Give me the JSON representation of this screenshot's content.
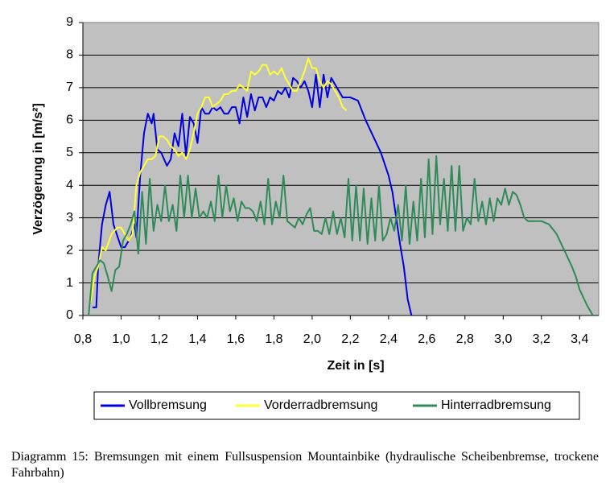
{
  "chart_data": {
    "type": "line",
    "y_label": "Verzögerung in [m/s²]",
    "x_label": "Zeit in [s]",
    "caption": "Diagramm 15: Bremsungen mit einem Fullsuspension Mountainbike (hydraulische Scheibenbremse, trockene Fahrbahn)",
    "xlim": [
      0.8,
      3.5
    ],
    "ylim": [
      0,
      9
    ],
    "xticks": [
      {
        "value": 0.8,
        "label": "0,8"
      },
      {
        "value": 1.0,
        "label": "1,0"
      },
      {
        "value": 1.2,
        "label": "1,2"
      },
      {
        "value": 1.4,
        "label": "1,4"
      },
      {
        "value": 1.6,
        "label": "1,6"
      },
      {
        "value": 1.8,
        "label": "1,8"
      },
      {
        "value": 2.0,
        "label": "2,0"
      },
      {
        "value": 2.2,
        "label": "2,2"
      },
      {
        "value": 2.4,
        "label": "2,4"
      },
      {
        "value": 2.6,
        "label": "2,6"
      },
      {
        "value": 2.8,
        "label": "2,8"
      },
      {
        "value": 3.0,
        "label": "3,0"
      },
      {
        "value": 3.2,
        "label": "3,2"
      },
      {
        "value": 3.4,
        "label": "3,4"
      }
    ],
    "yticks": [
      0,
      1,
      2,
      3,
      4,
      5,
      6,
      7,
      8,
      9
    ],
    "grid": true,
    "plot_background": "#c0c0c0",
    "series": [
      {
        "name": "Vollbremsung",
        "color": "#0000dd",
        "x": [
          0.85,
          0.87,
          0.88,
          0.9,
          0.92,
          0.94,
          0.96,
          1.0,
          1.02,
          1.05,
          1.07,
          1.08,
          1.1,
          1.12,
          1.14,
          1.16,
          1.17,
          1.19,
          1.21,
          1.24,
          1.26,
          1.28,
          1.3,
          1.32,
          1.34,
          1.36,
          1.38,
          1.4,
          1.42,
          1.44,
          1.46,
          1.48,
          1.5,
          1.52,
          1.54,
          1.56,
          1.58,
          1.6,
          1.62,
          1.64,
          1.66,
          1.68,
          1.7,
          1.72,
          1.74,
          1.76,
          1.78,
          1.8,
          1.82,
          1.84,
          1.86,
          1.88,
          1.9,
          1.92,
          1.94,
          1.96,
          1.98,
          2.0,
          2.02,
          2.04,
          2.06,
          2.08,
          2.1,
          2.12,
          2.16,
          2.2,
          2.24,
          2.28,
          2.32,
          2.36,
          2.4,
          2.42,
          2.44,
          2.46,
          2.48,
          2.5,
          2.52
        ],
        "values": [
          0.25,
          0.25,
          1.5,
          2.8,
          3.4,
          3.8,
          2.8,
          2.1,
          2.1,
          2.4,
          2.8,
          2.4,
          4.3,
          5.6,
          6.2,
          5.9,
          6.2,
          5.1,
          5.0,
          4.6,
          4.8,
          5.6,
          5.2,
          6.2,
          4.9,
          6.1,
          5.9,
          5.3,
          6.4,
          6.2,
          6.2,
          6.4,
          6.3,
          6.4,
          6.2,
          6.2,
          6.4,
          6.4,
          5.9,
          6.7,
          6.1,
          6.8,
          6.3,
          6.7,
          6.7,
          6.4,
          6.7,
          6.6,
          6.9,
          6.8,
          7.0,
          6.7,
          7.3,
          7.2,
          7.0,
          7.2,
          6.9,
          6.4,
          7.4,
          6.4,
          7.4,
          6.7,
          7.3,
          7.1,
          6.7,
          6.7,
          6.6,
          6.0,
          5.5,
          5.0,
          4.3,
          3.8,
          3.0,
          2.2,
          1.5,
          0.5,
          0
        ]
      },
      {
        "name": "Vorderradbremsung",
        "color": "#ffff33",
        "x": [
          0.84,
          0.86,
          0.88,
          0.9,
          0.92,
          0.95,
          0.98,
          1.0,
          1.02,
          1.04,
          1.06,
          1.08,
          1.1,
          1.12,
          1.14,
          1.16,
          1.18,
          1.2,
          1.22,
          1.24,
          1.26,
          1.28,
          1.3,
          1.32,
          1.34,
          1.36,
          1.38,
          1.4,
          1.42,
          1.44,
          1.46,
          1.48,
          1.5,
          1.52,
          1.54,
          1.56,
          1.58,
          1.6,
          1.62,
          1.64,
          1.66,
          1.68,
          1.7,
          1.72,
          1.74,
          1.76,
          1.78,
          1.8,
          1.82,
          1.84,
          1.86,
          1.88,
          1.9,
          1.92,
          1.94,
          1.96,
          1.98,
          2.0,
          2.02,
          2.04,
          2.06,
          2.08,
          2.1,
          2.12,
          2.14,
          2.16,
          2.18
        ],
        "values": [
          0.4,
          1.2,
          1.5,
          2.1,
          2.0,
          2.5,
          2.7,
          2.7,
          2.5,
          2.3,
          2.5,
          4.0,
          4.4,
          4.6,
          4.8,
          4.8,
          4.9,
          5.5,
          5.5,
          5.4,
          5.2,
          5.1,
          4.9,
          5.0,
          4.8,
          5.1,
          5.6,
          6.2,
          6.4,
          6.7,
          6.7,
          6.4,
          6.5,
          6.6,
          6.8,
          6.8,
          6.9,
          6.9,
          7.1,
          7.0,
          6.9,
          7.5,
          7.4,
          7.5,
          7.7,
          7.7,
          7.4,
          7.5,
          7.4,
          7.6,
          7.3,
          7.1,
          6.9,
          6.9,
          7.2,
          7.5,
          7.9,
          7.6,
          7.6,
          7.2,
          7.0,
          7.2,
          7.1,
          6.9,
          6.7,
          6.4,
          6.3
        ]
      },
      {
        "name": "Hinterradbremsung",
        "color": "#2e8b57",
        "x": [
          0.83,
          0.85,
          0.87,
          0.89,
          0.91,
          0.93,
          0.95,
          0.97,
          0.99,
          1.01,
          1.03,
          1.05,
          1.07,
          1.09,
          1.11,
          1.13,
          1.15,
          1.17,
          1.19,
          1.21,
          1.23,
          1.25,
          1.27,
          1.29,
          1.31,
          1.33,
          1.35,
          1.37,
          1.39,
          1.41,
          1.43,
          1.45,
          1.47,
          1.49,
          1.51,
          1.53,
          1.55,
          1.57,
          1.59,
          1.61,
          1.63,
          1.65,
          1.67,
          1.69,
          1.71,
          1.73,
          1.75,
          1.77,
          1.79,
          1.81,
          1.83,
          1.85,
          1.87,
          1.89,
          1.91,
          1.93,
          1.95,
          1.97,
          1.99,
          2.01,
          2.03,
          2.05,
          2.07,
          2.09,
          2.11,
          2.13,
          2.15,
          2.17,
          2.19,
          2.21,
          2.23,
          2.25,
          2.27,
          2.29,
          2.31,
          2.33,
          2.35,
          2.37,
          2.39,
          2.41,
          2.43,
          2.45,
          2.47,
          2.49,
          2.51,
          2.53,
          2.55,
          2.57,
          2.59,
          2.61,
          2.63,
          2.65,
          2.67,
          2.69,
          2.71,
          2.73,
          2.75,
          2.77,
          2.79,
          2.81,
          2.83,
          2.85,
          2.87,
          2.89,
          2.91,
          2.93,
          2.95,
          2.97,
          2.99,
          3.01,
          3.03,
          3.05,
          3.07,
          3.09,
          3.11,
          3.13,
          3.2,
          3.24,
          3.28,
          3.32,
          3.36,
          3.38,
          3.4,
          3.44,
          3.47
        ],
        "values": [
          0,
          1.3,
          1.5,
          1.7,
          1.6,
          1.2,
          0.75,
          1.4,
          1.5,
          2.3,
          2.5,
          2.8,
          3.2,
          1.9,
          3.8,
          2.2,
          4.2,
          2.6,
          3.4,
          2.9,
          4.0,
          2.9,
          3.4,
          2.6,
          4.3,
          3.0,
          4.3,
          3.0,
          3.9,
          3.0,
          3.2,
          3.0,
          3.5,
          2.9,
          4.3,
          3.0,
          4.0,
          3.2,
          3.6,
          2.9,
          3.5,
          3.3,
          3.3,
          3.2,
          2.9,
          3.5,
          2.8,
          4.2,
          2.8,
          3.5,
          3.0,
          4.3,
          2.9,
          2.8,
          2.7,
          3.0,
          2.8,
          3.1,
          3.3,
          2.6,
          2.6,
          2.5,
          3.0,
          2.5,
          3.2,
          2.5,
          3.0,
          2.4,
          4.2,
          2.3,
          4.0,
          2.3,
          3.9,
          2.2,
          3.6,
          2.3,
          4.0,
          2.3,
          2.5,
          3.0,
          2.6,
          3.4,
          2.3,
          4.0,
          2.2,
          3.5,
          2.3,
          4.2,
          2.4,
          4.8,
          2.5,
          4.9,
          2.8,
          4.2,
          2.6,
          4.6,
          2.6,
          4.6,
          2.6,
          3.0,
          2.8,
          4.2,
          2.9,
          3.5,
          2.8,
          3.6,
          2.9,
          3.6,
          3.4,
          3.9,
          3.4,
          3.8,
          3.7,
          3.4,
          3.0,
          2.9,
          2.9,
          2.8,
          2.5,
          2.0,
          1.5,
          1.2,
          0.8,
          0.3,
          0
        ]
      }
    ]
  }
}
